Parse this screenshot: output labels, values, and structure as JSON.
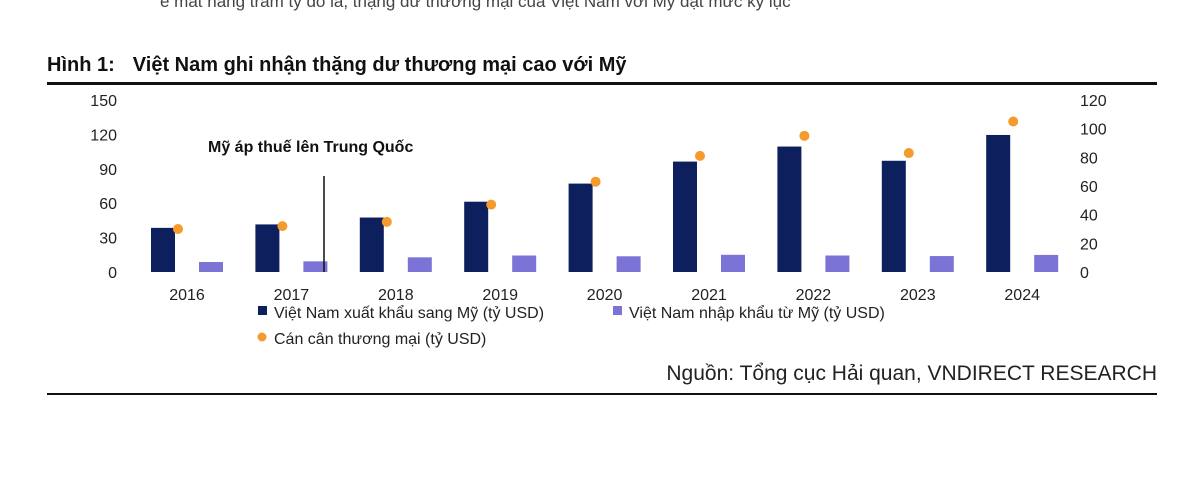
{
  "page": {
    "top_cut_text": "ẽ mất hàng trăm tỷ đô la, thặng dư thương mại của Việt Nam với Mỹ đạt mức kỷ lục",
    "figure_label": "Hình 1:",
    "figure_title": "Việt Nam ghi nhận thặng dư thương mại cao với Mỹ",
    "source": "Nguồn: Tổng cục Hải quan, VNDIRECT RESEARCH"
  },
  "colors": {
    "export": "#0d1f5c",
    "import": "#7b73d6",
    "balance": "#f59a2c"
  },
  "chart_data": {
    "type": "bar",
    "categories": [
      "2016",
      "2017",
      "2018",
      "2019",
      "2020",
      "2021",
      "2022",
      "2023",
      "2024"
    ],
    "series": [
      {
        "name": "Việt Nam xuất khẩu sang Mỹ (tỷ USD)",
        "type": "bar",
        "axis": "left",
        "values": [
          38.5,
          41.5,
          47.5,
          61.3,
          77.1,
          96.3,
          109.4,
          97.0,
          119.5
        ]
      },
      {
        "name": "Việt Nam nhập khẩu từ Mỹ (tỷ USD)",
        "type": "bar",
        "axis": "left",
        "values": [
          8.7,
          9.3,
          12.8,
          14.4,
          13.7,
          15.0,
          14.4,
          13.9,
          14.9
        ]
      },
      {
        "name": "Cán cân thương mại (tỷ USD)",
        "type": "scatter",
        "axis": "right",
        "values": [
          30,
          32,
          35,
          47,
          63,
          81,
          95,
          83,
          105
        ]
      }
    ],
    "y_left": {
      "ticks": [
        "150",
        "120",
        "90",
        "60",
        "30",
        "0"
      ],
      "lim": [
        0,
        150
      ]
    },
    "y_right": {
      "ticks": [
        "120",
        "100",
        "80",
        "60",
        "40",
        "20",
        "0"
      ],
      "lim": [
        0,
        120
      ]
    },
    "annotation": "Mỹ áp thuế lên Trung Quốc",
    "grid": false,
    "legend_position": "bottom"
  }
}
